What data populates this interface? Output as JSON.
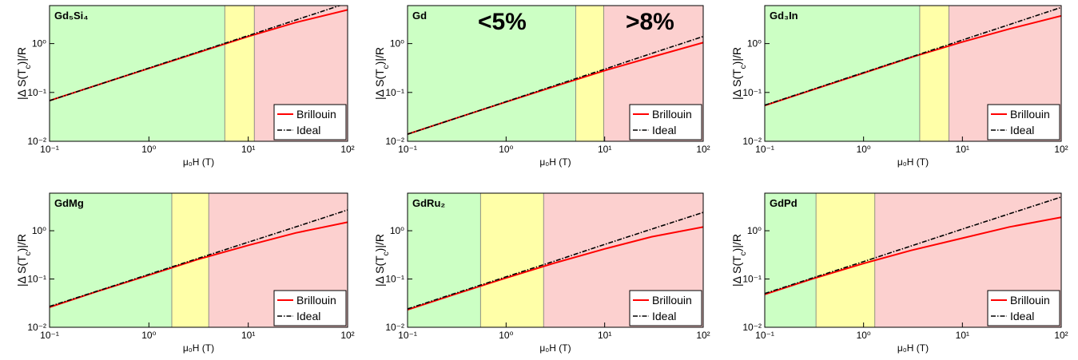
{
  "chart_data": [
    {
      "type": "line",
      "title": "Gd₅Si₄",
      "x_label": "μ₀H (T)",
      "y_label": [
        "|Δ S(T",
        "c",
        ")|/R"
      ],
      "x": [
        0.1,
        0.3,
        1,
        3,
        10,
        30,
        100
      ],
      "log_scale": true,
      "legend": "lower right",
      "series": [
        {
          "name": "Brillouin",
          "color": "#ff0000",
          "values": [
            0.068,
            0.141,
            0.31,
            0.64,
            1.4,
            2.7,
            4.9
          ]
        },
        {
          "name": "Ideal",
          "color": "#000000",
          "values": [
            0.068,
            0.141,
            0.316,
            0.657,
            1.46,
            3.04,
            6.8
          ]
        }
      ],
      "region_bounds": [
        5.8,
        11.5
      ],
      "region_colors": [
        "#ccffc4",
        "#ffffa8",
        "#fcd0cf"
      ],
      "xlim": [
        0.1,
        100
      ],
      "ylim": [
        0.01,
        6
      ],
      "xticks": [
        {
          "value": 0.1,
          "label": "10⁻¹"
        },
        {
          "value": 1,
          "label": "10⁰"
        },
        {
          "value": 10,
          "label": "10¹"
        },
        {
          "value": 100,
          "label": "10²"
        }
      ],
      "yticks": [
        {
          "value": 0.01,
          "label": "10⁻²"
        },
        {
          "value": 0.1,
          "label": "10⁻¹"
        },
        {
          "value": 1,
          "label": "10⁰"
        }
      ]
    },
    {
      "type": "line",
      "title": "Gd",
      "x_label": "μ₀H (T)",
      "y_label": [
        "|Δ S(T",
        "c",
        ")|/R"
      ],
      "annotations": [
        "<5%",
        ">8%"
      ],
      "x": [
        0.1,
        0.3,
        1,
        3,
        10,
        30,
        100
      ],
      "log_scale": true,
      "legend": "lower right",
      "series": [
        {
          "name": "Brillouin",
          "color": "#ff0000",
          "values": [
            0.014,
            0.029,
            0.064,
            0.13,
            0.28,
            0.53,
            1.05
          ]
        },
        {
          "name": "Ideal",
          "color": "#000000",
          "values": [
            0.014,
            0.029,
            0.065,
            0.135,
            0.3,
            0.63,
            1.4
          ]
        }
      ],
      "region_bounds": [
        5.1,
        9.8
      ],
      "region_colors": [
        "#ccffc4",
        "#ffffa8",
        "#fcd0cf"
      ],
      "xlim": [
        0.1,
        100
      ],
      "ylim": [
        0.01,
        6
      ],
      "xticks": [
        {
          "value": 0.1,
          "label": "10⁻¹"
        },
        {
          "value": 1,
          "label": "10⁰"
        },
        {
          "value": 10,
          "label": "10¹"
        },
        {
          "value": 100,
          "label": "10²"
        }
      ],
      "yticks": [
        {
          "value": 0.01,
          "label": "10⁻²"
        },
        {
          "value": 0.1,
          "label": "10⁻¹"
        },
        {
          "value": 1,
          "label": "10⁰"
        }
      ]
    },
    {
      "type": "line",
      "title": "Gd₃In",
      "x_label": "μ₀H (T)",
      "y_label": [
        "|Δ S(T",
        "c",
        ")|/R"
      ],
      "x": [
        0.1,
        0.3,
        1,
        3,
        10,
        30,
        100
      ],
      "log_scale": true,
      "legend": "lower right",
      "series": [
        {
          "name": "Brillouin",
          "color": "#ff0000",
          "values": [
            0.054,
            0.112,
            0.25,
            0.52,
            1.08,
            2.0,
            3.7
          ]
        },
        {
          "name": "Ideal",
          "color": "#000000",
          "values": [
            0.055,
            0.114,
            0.255,
            0.53,
            1.18,
            2.46,
            5.5
          ]
        }
      ],
      "region_bounds": [
        3.7,
        7.3
      ],
      "region_colors": [
        "#ccffc4",
        "#ffffa8",
        "#fcd0cf"
      ],
      "xlim": [
        0.1,
        100
      ],
      "ylim": [
        0.01,
        6
      ],
      "xticks": [
        {
          "value": 0.1,
          "label": "10⁻¹"
        },
        {
          "value": 1,
          "label": "10⁰"
        },
        {
          "value": 10,
          "label": "10¹"
        },
        {
          "value": 100,
          "label": "10²"
        }
      ],
      "yticks": [
        {
          "value": 0.01,
          "label": "10⁻²"
        },
        {
          "value": 0.1,
          "label": "10⁻¹"
        },
        {
          "value": 1,
          "label": "10⁰"
        }
      ]
    },
    {
      "type": "line",
      "title": "GdMg",
      "x_label": "μ₀H (T)",
      "y_label": [
        "|Δ S(T",
        "c",
        ")|/R"
      ],
      "x": [
        0.1,
        0.3,
        1,
        3,
        10,
        30,
        100
      ],
      "log_scale": true,
      "legend": "lower right",
      "series": [
        {
          "name": "Brillouin",
          "color": "#ff0000",
          "values": [
            0.026,
            0.055,
            0.12,
            0.25,
            0.5,
            0.9,
            1.5
          ]
        },
        {
          "name": "Ideal",
          "color": "#000000",
          "values": [
            0.027,
            0.056,
            0.125,
            0.26,
            0.58,
            1.2,
            2.7
          ]
        }
      ],
      "region_bounds": [
        1.7,
        4.0
      ],
      "region_colors": [
        "#ccffc4",
        "#ffffa8",
        "#fcd0cf"
      ],
      "xlim": [
        0.1,
        100
      ],
      "ylim": [
        0.01,
        6
      ],
      "xticks": [
        {
          "value": 0.1,
          "label": "10⁻¹"
        },
        {
          "value": 1,
          "label": "10⁰"
        },
        {
          "value": 10,
          "label": "10¹"
        },
        {
          "value": 100,
          "label": "10²"
        }
      ],
      "yticks": [
        {
          "value": 0.01,
          "label": "10⁻²"
        },
        {
          "value": 0.1,
          "label": "10⁻¹"
        },
        {
          "value": 1,
          "label": "10⁰"
        }
      ]
    },
    {
      "type": "line",
      "title": "GdRu₂",
      "x_label": "μ₀H (T)",
      "y_label": [
        "|Δ S(T",
        "c",
        ")|/R"
      ],
      "x": [
        0.1,
        0.3,
        1,
        3,
        10,
        30,
        100
      ],
      "log_scale": true,
      "legend": "lower right",
      "series": [
        {
          "name": "Brillouin",
          "color": "#ff0000",
          "values": [
            0.023,
            0.048,
            0.105,
            0.21,
            0.42,
            0.75,
            1.2
          ]
        },
        {
          "name": "Ideal",
          "color": "#000000",
          "values": [
            0.024,
            0.05,
            0.111,
            0.23,
            0.52,
            1.08,
            2.4
          ]
        }
      ],
      "region_bounds": [
        0.55,
        2.4
      ],
      "region_colors": [
        "#ccffc4",
        "#ffffa8",
        "#fcd0cf"
      ],
      "xlim": [
        0.1,
        100
      ],
      "ylim": [
        0.01,
        6
      ],
      "xticks": [
        {
          "value": 0.1,
          "label": "10⁻¹"
        },
        {
          "value": 1,
          "label": "10⁰"
        },
        {
          "value": 10,
          "label": "10¹"
        },
        {
          "value": 100,
          "label": "10²"
        }
      ],
      "yticks": [
        {
          "value": 0.01,
          "label": "10⁻²"
        },
        {
          "value": 0.1,
          "label": "10⁻¹"
        },
        {
          "value": 1,
          "label": "10⁰"
        }
      ]
    },
    {
      "type": "line",
      "title": "GdPd",
      "x_label": "μ₀H (T)",
      "y_label": [
        "|Δ S(T",
        "c",
        ")|/R"
      ],
      "x": [
        0.1,
        0.3,
        1,
        3,
        10,
        30,
        100
      ],
      "log_scale": true,
      "legend": "lower right",
      "series": [
        {
          "name": "Brillouin",
          "color": "#ff0000",
          "values": [
            0.048,
            0.1,
            0.21,
            0.39,
            0.7,
            1.2,
            1.9
          ]
        },
        {
          "name": "Ideal",
          "color": "#000000",
          "values": [
            0.05,
            0.104,
            0.23,
            0.48,
            1.08,
            2.25,
            5.0
          ]
        }
      ],
      "region_bounds": [
        0.33,
        1.3
      ],
      "region_colors": [
        "#ccffc4",
        "#ffffa8",
        "#fcd0cf"
      ],
      "xlim": [
        0.1,
        100
      ],
      "ylim": [
        0.01,
        6
      ],
      "xticks": [
        {
          "value": 0.1,
          "label": "10⁻¹"
        },
        {
          "value": 1,
          "label": "10⁰"
        },
        {
          "value": 10,
          "label": "10¹"
        },
        {
          "value": 100,
          "label": "10²"
        }
      ],
      "yticks": [
        {
          "value": 0.01,
          "label": "10⁻²"
        },
        {
          "value": 0.1,
          "label": "10⁻¹"
        },
        {
          "value": 1,
          "label": "10⁰"
        }
      ]
    }
  ]
}
